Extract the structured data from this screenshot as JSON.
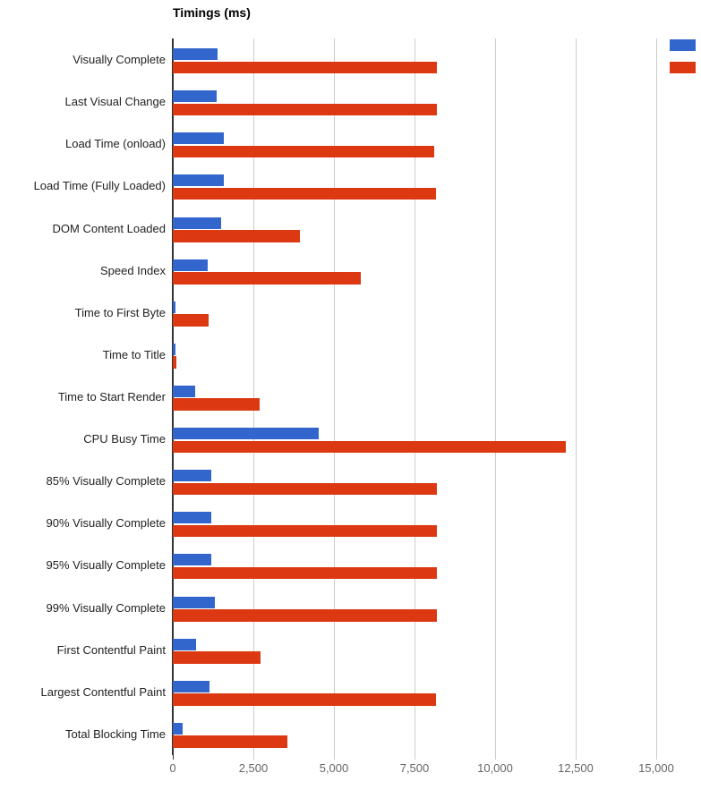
{
  "chart": {
    "title": "Timings (ms)"
  },
  "chart_data": {
    "type": "bar",
    "orientation": "horizontal",
    "title": "Timings (ms)",
    "xlabel": "",
    "ylabel": "",
    "grid": true,
    "categories": [
      "Visually Complete",
      "Last Visual Change",
      "Load Time (onload)",
      "Load Time (Fully Loaded)",
      "DOM Content Loaded",
      "Speed Index",
      "Time to First Byte",
      "Time to Title",
      "Time to Start Render",
      "CPU Busy Time",
      "85% Visually Complete",
      "90% Visually Complete",
      "95% Visually Complete",
      "99% Visually Complete",
      "First Contentful Paint",
      "Largest Contentful Paint",
      "Total Blocking Time"
    ],
    "series": [
      {
        "id": "series-1",
        "color": "#3366CC",
        "values": [
          1380,
          1370,
          1570,
          1570,
          1500,
          1080,
          80,
          70,
          690,
          4530,
          1190,
          1190,
          1190,
          1310,
          730,
          1150,
          310
        ]
      },
      {
        "id": "series-2",
        "color": "#DC3912",
        "values": [
          8190,
          8180,
          8100,
          8160,
          3940,
          5830,
          1120,
          100,
          2690,
          12200,
          8200,
          8180,
          8180,
          8200,
          2720,
          8160,
          3560
        ]
      }
    ],
    "x_axis": {
      "tick_labels": [
        "0",
        "2,500",
        "5,000",
        "7,500",
        "10,000",
        "12,500",
        "15,000"
      ],
      "tick_values": [
        0,
        2500,
        5000,
        7500,
        10000,
        12500,
        15000
      ],
      "range": [
        0,
        16389
      ]
    },
    "legend": {
      "position": "top-right",
      "labels_visible": false,
      "swatch_colors": [
        "#3366CC",
        "#DC3912"
      ]
    },
    "style_colors": {
      "gridline": "#CCCCCC",
      "axis_line": "#333333",
      "category_label": "#222222",
      "tick_label": "#666666",
      "background": "#FFFFFF"
    }
  }
}
